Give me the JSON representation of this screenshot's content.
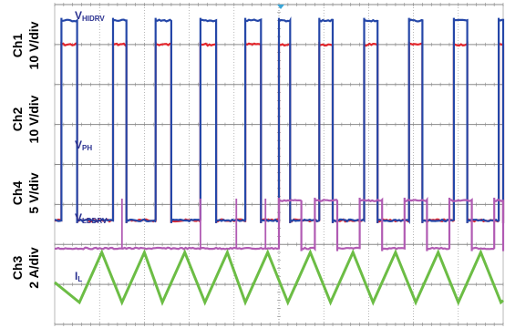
{
  "chart_data": {
    "type": "line",
    "title": "",
    "x_divisions": 10,
    "y_divisions": 8,
    "grid": true,
    "channels": [
      {
        "id": "ch1",
        "scale_label": "Ch1",
        "scale_value": "10 V/div",
        "signal_label": "V",
        "signal_sub": "HIDRV",
        "color": "#2547a8"
      },
      {
        "id": "ch2",
        "scale_label": "Ch2",
        "scale_value": "10 V/div",
        "signal_label": "V",
        "signal_sub": "PH",
        "color": "#e3262c"
      },
      {
        "id": "ch4",
        "scale_label": "Ch4",
        "scale_value": "5 V/div",
        "signal_label": "V",
        "signal_sub": "LDDRV",
        "color": "#b15bb3"
      },
      {
        "id": "ch3",
        "scale_label": "Ch3",
        "scale_value": "2 A/div",
        "signal_label": "I",
        "signal_sub": "L",
        "color": "#6cbd45"
      }
    ],
    "series": [
      {
        "channel": "ch1",
        "levels_div": {
          "low": 2.6,
          "high": 7.6
        },
        "pulses_div": [
          [
            0.15,
            0.5
          ],
          [
            1.3,
            1.6
          ],
          [
            2.25,
            2.6
          ],
          [
            3.25,
            3.6
          ],
          [
            4.25,
            4.6
          ],
          [
            5.0,
            5.25
          ],
          [
            5.9,
            6.2
          ],
          [
            6.9,
            7.2
          ],
          [
            7.9,
            8.2
          ],
          [
            8.9,
            9.2
          ],
          [
            9.9,
            10.0
          ]
        ]
      },
      {
        "channel": "ch2",
        "levels_div": {
          "low": 2.6,
          "high": 7.0
        },
        "pulses_div": [
          [
            0.15,
            0.5
          ],
          [
            1.3,
            1.6
          ],
          [
            2.25,
            2.6
          ],
          [
            3.25,
            3.6
          ],
          [
            4.25,
            4.6
          ],
          [
            5.0,
            5.25
          ],
          [
            5.9,
            6.2
          ],
          [
            6.9,
            7.2
          ],
          [
            7.9,
            8.2
          ],
          [
            8.9,
            9.2
          ],
          [
            9.9,
            10.0
          ]
        ]
      },
      {
        "channel": "ch4",
        "levels_div": {
          "low": 1.9,
          "high": 3.1
        },
        "spikes_div": [
          1.5,
          3.25,
          4.05,
          4.7
        ],
        "pulses_div": [
          [
            5.0,
            5.5
          ],
          [
            5.8,
            6.3
          ],
          [
            6.8,
            7.3
          ],
          [
            7.8,
            8.3
          ],
          [
            8.8,
            9.3
          ],
          [
            9.8,
            10.0
          ]
        ]
      },
      {
        "channel": "ch3",
        "levels_div": {
          "valley": 0.55,
          "peak": 1.8
        },
        "valleys_div": [
          0.55,
          1.5,
          2.4,
          3.35,
          4.25,
          5.2,
          6.15,
          7.1,
          8.05,
          9.0,
          9.95
        ],
        "peaks_div": [
          1.05,
          2.0,
          2.9,
          3.85,
          4.75,
          5.7,
          6.65,
          7.6,
          8.55,
          9.5
        ]
      }
    ]
  }
}
